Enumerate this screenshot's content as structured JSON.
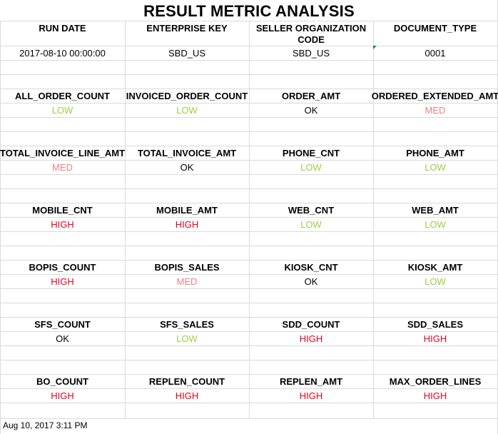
{
  "title": "RESULT METRIC ANALYSIS",
  "header_columns": [
    "RUN DATE",
    "ENTERPRISE KEY",
    "SELLER ORGANIZATION CODE",
    "DOCUMENT_TYPE"
  ],
  "header_values": [
    "2017-08-10 00:00:00",
    "SBD_US",
    "SBD_US",
    "0001"
  ],
  "metric_blocks": [
    {
      "labels": [
        "ALL_ORDER_COUNT",
        "INVOICED_ORDER_COUNT",
        "ORDER_AMT",
        "ORDERED_EXTENDED_AMT"
      ],
      "values": [
        "LOW",
        "LOW",
        "OK",
        "MED"
      ]
    },
    {
      "labels": [
        "TOTAL_INVOICE_LINE_AMT",
        "TOTAL_INVOICE_AMT",
        "PHONE_CNT",
        "PHONE_AMT"
      ],
      "values": [
        "MED",
        "OK",
        "LOW",
        "LOW"
      ]
    },
    {
      "labels": [
        "MOBILE_CNT",
        "MOBILE_AMT",
        "WEB_CNT",
        "WEB_AMT"
      ],
      "values": [
        "HIGH",
        "HIGH",
        "LOW",
        "LOW"
      ]
    },
    {
      "labels": [
        "BOPIS_COUNT",
        "BOPIS_SALES",
        "KIOSK_CNT",
        "KIOSK_AMT"
      ],
      "values": [
        "HIGH",
        "MED",
        "OK",
        "LOW"
      ]
    },
    {
      "labels": [
        "SFS_COUNT",
        "SFS_SALES",
        "SDD_COUNT",
        "SDD_SALES"
      ],
      "values": [
        "OK",
        "LOW",
        "HIGH",
        "HIGH"
      ]
    },
    {
      "labels": [
        "BO_COUNT",
        "REPLEN_COUNT",
        "REPLEN_AMT",
        "MAX_ORDER_LINES"
      ],
      "values": [
        "HIGH",
        "HIGH",
        "HIGH",
        "HIGH"
      ]
    }
  ],
  "status_colors": {
    "LOW": "#9bcf47",
    "MED": "#f07f80",
    "OK": "#000000",
    "HIGH": "#e8001c"
  },
  "footer": "Aug 10, 2017 3:11 PM"
}
